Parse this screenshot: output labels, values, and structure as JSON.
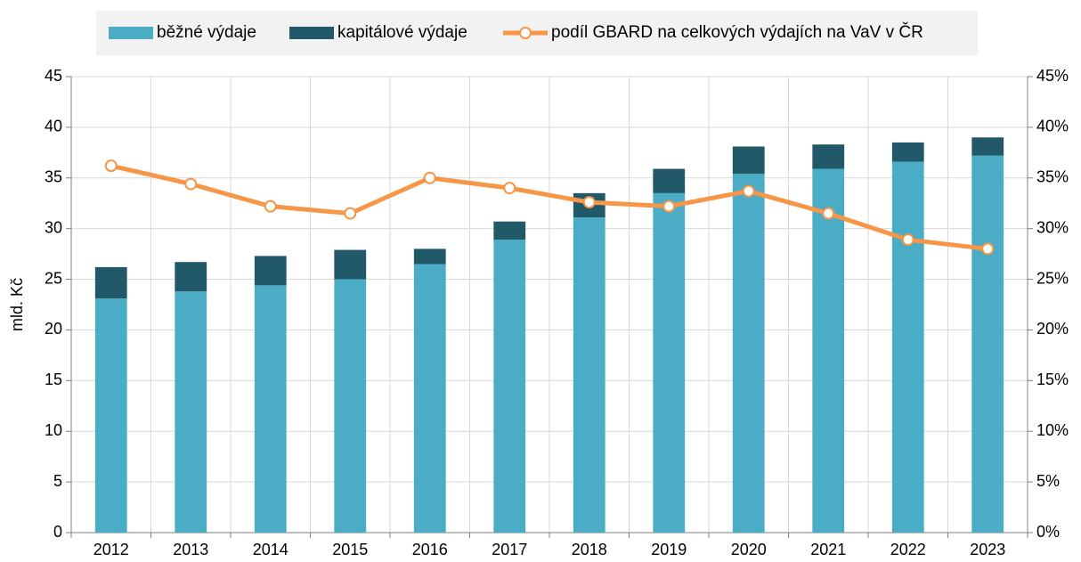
{
  "chart_data": {
    "type": "bar",
    "stacked": true,
    "categories": [
      "2012",
      "2013",
      "2014",
      "2015",
      "2016",
      "2017",
      "2018",
      "2019",
      "2020",
      "2021",
      "2022",
      "2023"
    ],
    "ylabel": "mld. Kč",
    "ylim": [
      0,
      45
    ],
    "yticks": [
      0,
      5,
      10,
      15,
      20,
      25,
      30,
      35,
      40,
      45
    ],
    "y2lim": [
      0,
      45
    ],
    "y2ticks": [
      {
        "value": 0,
        "label": "0%"
      },
      {
        "value": 5,
        "label": "5%"
      },
      {
        "value": 10,
        "label": "10%"
      },
      {
        "value": 15,
        "label": "15%"
      },
      {
        "value": 20,
        "label": "20%"
      },
      {
        "value": 25,
        "label": "25%"
      },
      {
        "value": 30,
        "label": "30%"
      },
      {
        "value": 35,
        "label": "35%"
      },
      {
        "value": 40,
        "label": "40%"
      },
      {
        "value": 45,
        "label": "45%"
      }
    ],
    "grid": true,
    "legend": "top",
    "series": [
      {
        "name": "běžné výdaje",
        "type": "bar",
        "color": "#4bacc6",
        "values": [
          23.1,
          23.8,
          24.4,
          25.0,
          26.5,
          28.9,
          31.1,
          33.5,
          35.4,
          35.9,
          36.6,
          37.2
        ]
      },
      {
        "name": "kapitálové výdaje",
        "type": "bar",
        "color": "#215968",
        "values": [
          3.1,
          2.9,
          2.9,
          2.9,
          1.5,
          1.8,
          2.4,
          2.4,
          2.7,
          2.4,
          1.9,
          1.8
        ]
      },
      {
        "name": "podíl GBARD na celkových výdajích na VaV v ČR",
        "type": "line",
        "axis": "y2",
        "color": "#f79646",
        "values": [
          36.2,
          34.4,
          32.2,
          31.5,
          35.0,
          34.0,
          32.6,
          32.2,
          33.7,
          31.5,
          28.9,
          28.0
        ]
      }
    ]
  }
}
